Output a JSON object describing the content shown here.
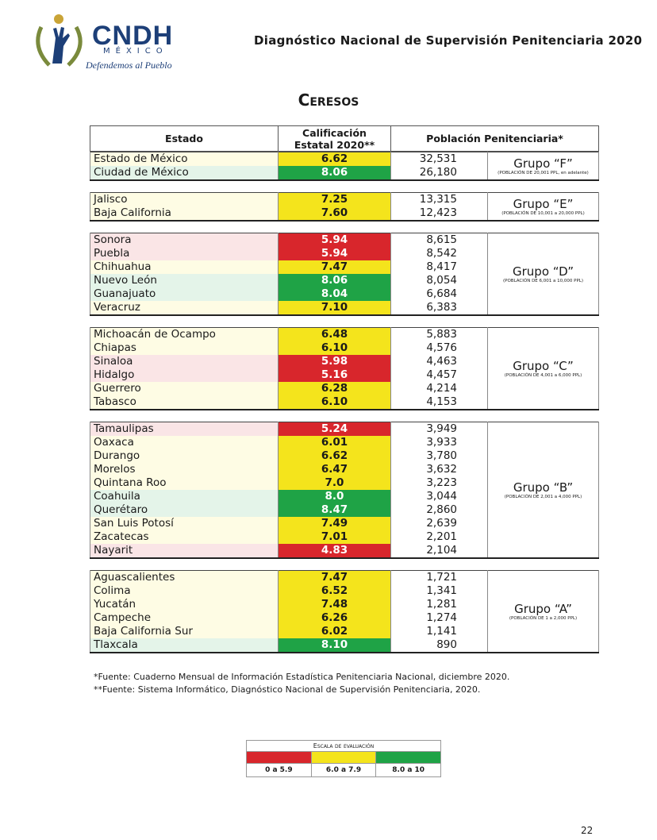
{
  "header": {
    "logo_title": "CNDH",
    "logo_sub": "MÉXICO",
    "logo_motto": "Defendemos al Pueblo",
    "doc_title": "Diagnóstico Nacional de Supervisión Penitenciaria 2020"
  },
  "title": "Ceresos",
  "table": {
    "columns": [
      "Estado",
      "Calificación Estatal 2020**",
      "Población Penitenciaria*"
    ],
    "groups": [
      {
        "name": "Grupo “F”",
        "note": "(POBLACIÓN DE 20,001 PPL, en adelante)",
        "rows": [
          {
            "estado": "Estado de México",
            "score": "6.62",
            "color": "#f4e41c",
            "population": "32,531"
          },
          {
            "estado": "Ciudad de México",
            "score": "8.06",
            "color": "#1fa346",
            "population": "26,180"
          }
        ]
      },
      {
        "name": "Grupo “E”",
        "note": "(POBLACIÓN DE 10,001 a 20,000 PPL)",
        "rows": [
          {
            "estado": "Jalisco",
            "score": "7.25",
            "color": "#f4e41c",
            "population": "13,315"
          },
          {
            "estado": "Baja California",
            "score": "7.60",
            "color": "#f4e41c",
            "population": "12,423"
          }
        ]
      },
      {
        "name": "Grupo “D”",
        "note": "(POBLACIÓN DE 6,001 a 10,000 PPL)",
        "rows": [
          {
            "estado": "Sonora",
            "score": "5.94",
            "color": "#d8262c",
            "population": "8,615"
          },
          {
            "estado": "Puebla",
            "score": "5.94",
            "color": "#d8262c",
            "population": "8,542"
          },
          {
            "estado": "Chihuahua",
            "score": "7.47",
            "color": "#f4e41c",
            "population": "8,417"
          },
          {
            "estado": "Nuevo León",
            "score": "8.06",
            "color": "#1fa346",
            "population": "8,054"
          },
          {
            "estado": "Guanajuato",
            "score": "8.04",
            "color": "#1fa346",
            "population": "6,684"
          },
          {
            "estado": "Veracruz",
            "score": "7.10",
            "color": "#f4e41c",
            "population": "6,383"
          }
        ]
      },
      {
        "name": "Grupo “C”",
        "note": "(POBLACIÓN DE 4,001 a 6,000 PPL)",
        "rows": [
          {
            "estado": "Michoacán de Ocampo",
            "score": "6.48",
            "color": "#f4e41c",
            "population": "5,883"
          },
          {
            "estado": "Chiapas",
            "score": "6.10",
            "color": "#f4e41c",
            "population": "4,576"
          },
          {
            "estado": "Sinaloa",
            "score": "5.98",
            "color": "#d8262c",
            "population": "4,463"
          },
          {
            "estado": "Hidalgo",
            "score": "5.16",
            "color": "#d8262c",
            "population": "4,457"
          },
          {
            "estado": "Guerrero",
            "score": "6.28",
            "color": "#f4e41c",
            "population": "4,214"
          },
          {
            "estado": "Tabasco",
            "score": "6.10",
            "color": "#f4e41c",
            "population": "4,153"
          }
        ]
      },
      {
        "name": "Grupo “B”",
        "note": "(POBLACIÓN DE 2,001 a 4,000 PPL)",
        "rows": [
          {
            "estado": "Tamaulipas",
            "score": "5.24",
            "color": "#d8262c",
            "population": "3,949"
          },
          {
            "estado": "Oaxaca",
            "score": "6.01",
            "color": "#f4e41c",
            "population": "3,933"
          },
          {
            "estado": "Durango",
            "score": "6.62",
            "color": "#f4e41c",
            "population": "3,780"
          },
          {
            "estado": "Morelos",
            "score": "6.47",
            "color": "#f4e41c",
            "population": "3,632"
          },
          {
            "estado": "Quintana Roo",
            "score": "7.0",
            "color": "#f4e41c",
            "population": "3,223"
          },
          {
            "estado": "Coahuila",
            "score": "8.0",
            "color": "#1fa346",
            "population": "3,044"
          },
          {
            "estado": "Querétaro",
            "score": "8.47",
            "color": "#1fa346",
            "population": "2,860"
          },
          {
            "estado": "San Luis Potosí",
            "score": "7.49",
            "color": "#f4e41c",
            "population": "2,639"
          },
          {
            "estado": "Zacatecas",
            "score": "7.01",
            "color": "#f4e41c",
            "population": "2,201"
          },
          {
            "estado": "Nayarit",
            "score": "4.83",
            "color": "#d8262c",
            "population": "2,104"
          }
        ]
      },
      {
        "name": "Grupo “A”",
        "note": "(POBLACIÓN DE 1 a 2,000 PPL)",
        "rows": [
          {
            "estado": "Aguascalientes",
            "score": "7.47",
            "color": "#f4e41c",
            "population": "1,721"
          },
          {
            "estado": "Colima",
            "score": "6.52",
            "color": "#f4e41c",
            "population": "1,341"
          },
          {
            "estado": "Yucatán",
            "score": "7.48",
            "color": "#f4e41c",
            "population": "1,281"
          },
          {
            "estado": "Campeche",
            "score": "6.26",
            "color": "#f4e41c",
            "population": "1,274"
          },
          {
            "estado": "Baja California Sur",
            "score": "6.02",
            "color": "#f4e41c",
            "population": "1,141"
          },
          {
            "estado": "Tlaxcala",
            "score": "8.10",
            "color": "#1fa346",
            "population": "890"
          }
        ]
      }
    ]
  },
  "footnotes": [
    "*Fuente: Cuaderno Mensual de Información Estadística Penitenciaria Nacional, diciembre 2020.",
    "**Fuente: Sistema Informático, Diagnóstico Nacional de Supervisión Penitenciaria, 2020."
  ],
  "legend": {
    "title": "Escala de evaluación",
    "items": [
      {
        "label": "0 a 5.9",
        "color": "#d8262c"
      },
      {
        "label": "6.0 a 7.9",
        "color": "#f4e41c"
      },
      {
        "label": "8.0 a 10",
        "color": "#1fa346"
      }
    ]
  },
  "page_number": "22"
}
